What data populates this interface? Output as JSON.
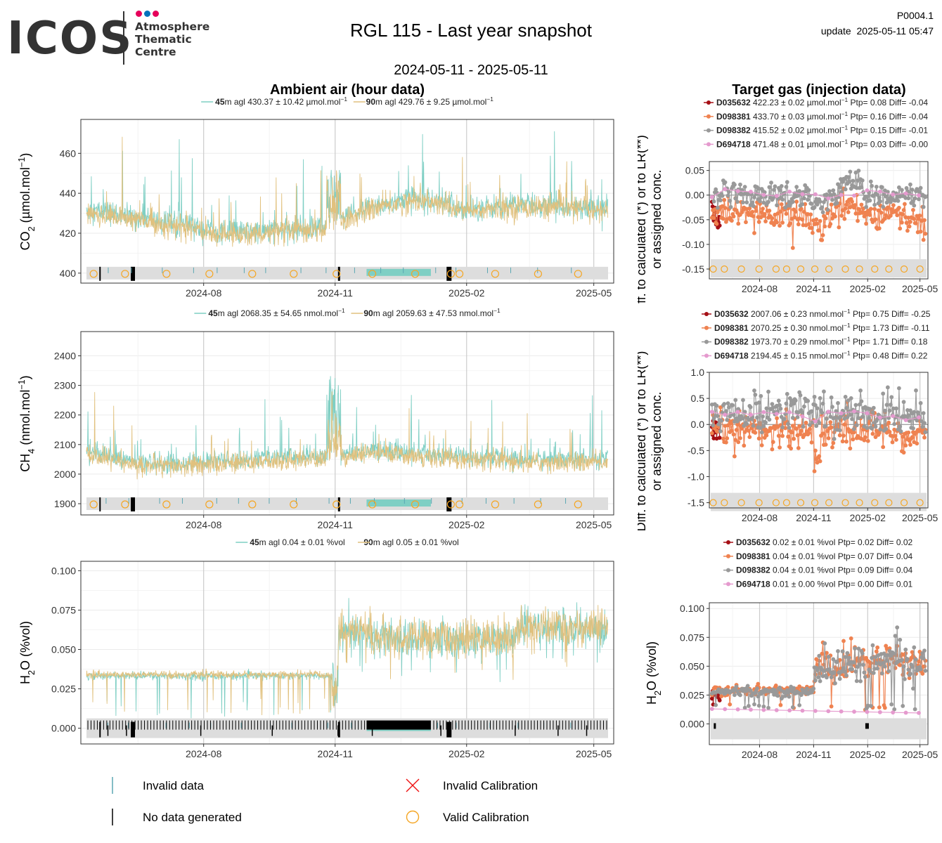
{
  "logo": {
    "word": "ICOS",
    "line1": "Atmosphere",
    "line2": "Thematic",
    "line3": "Centre",
    "dot_colors": [
      "#e6005a",
      "#0072bc",
      "#e6005a"
    ]
  },
  "header": {
    "title": "RGL 115 - Last year snapshot",
    "date_range": "2024-05-11 - 2025-05-11",
    "product_code": "P0004.1",
    "update": "update  2025-05-11 05:47"
  },
  "panels": {
    "ambient_title": "Ambient air (hour data)",
    "target_title": "Target gas (injection data)"
  },
  "colors": {
    "h45": "#7fcfc4",
    "h90": "#e1c17e",
    "D035632": "#a50f15",
    "D098381": "#ef8250",
    "D098382": "#999999",
    "D694718": "#e59ace",
    "valid": "#f5a623",
    "invalid": "#ee1111",
    "band": "#dddddd"
  },
  "legend": {
    "invalid_data": "Invalid data",
    "no_data": "No data generated",
    "invalid_cal": "Invalid Calibration",
    "valid_cal": "Valid Calibration"
  },
  "chart_data": [
    {
      "id": "co2_ambient",
      "type": "line",
      "ylabel": "CO2 (µmol.mol-1)",
      "x_ticks": [
        "2024-08",
        "2024-11",
        "2025-02",
        "2025-05"
      ],
      "y_ticks": [
        400,
        420,
        440,
        460
      ],
      "ylim": [
        395,
        477
      ],
      "series": [
        {
          "name": "45m agl",
          "stat": "430.37 ± 10.42 µmol.mol-1",
          "baseline": [
            432,
            428,
            424,
            420,
            421,
            423,
            433,
            438,
            432,
            434,
            434,
            432
          ]
        },
        {
          "name": "90m agl",
          "stat": "429.76 ± 9.25 µmol.mol-1",
          "baseline": [
            430,
            427,
            423,
            419,
            420,
            422,
            432,
            437,
            431,
            433,
            433,
            431
          ]
        }
      ]
    },
    {
      "id": "ch4_ambient",
      "type": "line",
      "ylabel": "CH4 (nmol.mol-1)",
      "x_ticks": [
        "2024-08",
        "2024-11",
        "2025-02",
        "2025-05"
      ],
      "y_ticks": [
        1900,
        2000,
        2100,
        2200,
        2300,
        2400
      ],
      "ylim": [
        1862,
        2482
      ],
      "series": [
        {
          "name": "45m agl",
          "stat": "2068.35 ± 54.65 nmol.mol-1",
          "baseline": [
            2080,
            2040,
            2035,
            2045,
            2055,
            2060,
            2080,
            2070,
            2060,
            2050,
            2050,
            2050
          ]
        },
        {
          "name": "90m agl",
          "stat": "2059.63 ± 47.53 nmol.mol-1",
          "baseline": [
            2070,
            2030,
            2025,
            2035,
            2045,
            2050,
            2070,
            2060,
            2050,
            2040,
            2040,
            2040
          ]
        }
      ]
    },
    {
      "id": "h2o_ambient",
      "type": "line",
      "ylabel": "H2O (%vol)",
      "x_ticks": [
        "2024-08",
        "2024-11",
        "2025-02",
        "2025-05"
      ],
      "y_ticks": [
        "0.000",
        "0.025",
        "0.050",
        "0.075",
        "0.100"
      ],
      "ylim": [
        -0.01,
        0.106
      ],
      "series": [
        {
          "name": "45m agl",
          "stat": "0.04 ± 0.01 %vol"
        },
        {
          "name": "90m agl",
          "stat": "0.05 ± 0.01 %vol"
        }
      ]
    },
    {
      "id": "co2_target",
      "type": "scatter",
      "ylabel_line1": "ff. to calculated (*) or to LR(**)",
      "ylabel_line2": "or assigned conc.",
      "x_ticks": [
        "2024-08",
        "2024-11",
        "2025-02",
        "2025-05"
      ],
      "y_ticks": [
        "0.05",
        "0.00",
        "-0.05",
        "-0.10",
        "-0.15"
      ],
      "ylim": [
        -0.17,
        0.068
      ],
      "series": [
        {
          "name": "D035632",
          "stat": "422.23 ± 0.02 µmol.mol-1",
          "ptp": "Ptp= 0.08",
          "diff": "Diff= -0.04"
        },
        {
          "name": "D098381",
          "stat": "433.70 ± 0.03 µmol.mol-1",
          "ptp": "Ptp= 0.16",
          "diff": "Diff= -0.04"
        },
        {
          "name": "D098382",
          "stat": "415.52 ± 0.02 µmol.mol-1",
          "ptp": "Ptp= 0.15",
          "diff": "Diff= -0.01"
        },
        {
          "name": "D694718",
          "stat": "471.48 ± 0.01 µmol.mol-1",
          "ptp": "Ptp= 0.03",
          "diff": "Diff= -0.00"
        }
      ]
    },
    {
      "id": "ch4_target",
      "type": "scatter",
      "ylabel_line1": "Diff. to calculated (*) or to LR(**)",
      "ylabel_line2": "or assigned conc.",
      "x_ticks": [
        "2024-08",
        "2024-11",
        "2025-02",
        "2025-05"
      ],
      "y_ticks": [
        "1.0",
        "0.5",
        "0.0",
        "-0.5",
        "-1.0",
        "-1.5"
      ],
      "ylim": [
        -1.6,
        1.0
      ],
      "series": [
        {
          "name": "D035632",
          "stat": "2007.06 ± 0.23 nmol.mol-1",
          "ptp": "Ptp= 0.75",
          "diff": "Diff= -0.25"
        },
        {
          "name": "D098381",
          "stat": "2070.25 ± 0.30 nmol.mol-1",
          "ptp": "Ptp= 1.73",
          "diff": "Diff= -0.11"
        },
        {
          "name": "D098382",
          "stat": "1973.70 ± 0.29 nmol.mol-1",
          "ptp": "Ptp= 1.71",
          "diff": "Diff= 0.18"
        },
        {
          "name": "D694718",
          "stat": "2194.45 ± 0.15 nmol.mol-1",
          "ptp": "Ptp= 0.48",
          "diff": "Diff= 0.22"
        }
      ]
    },
    {
      "id": "h2o_target",
      "type": "scatter",
      "ylabel": "H2O (%vol)",
      "x_ticks": [
        "2024-08",
        "2024-11",
        "2025-02",
        "2025-05"
      ],
      "y_ticks": [
        "0.000",
        "0.025",
        "0.050",
        "0.075",
        "0.100"
      ],
      "ylim": [
        -0.018,
        0.105
      ],
      "series": [
        {
          "name": "D035632",
          "stat": "0.02 ± 0.01 %vol",
          "ptp": "Ptp= 0.02",
          "diff": "Diff= 0.02"
        },
        {
          "name": "D098381",
          "stat": "0.04 ± 0.01 %vol",
          "ptp": "Ptp= 0.07",
          "diff": "Diff= 0.04"
        },
        {
          "name": "D098382",
          "stat": "0.04 ± 0.01 %vol",
          "ptp": "Ptp= 0.09",
          "diff": "Diff= 0.04"
        },
        {
          "name": "D694718",
          "stat": "0.01 ± 0.00 %vol",
          "ptp": "Ptp= 0.00",
          "diff": "Diff= 0.01"
        }
      ]
    }
  ]
}
